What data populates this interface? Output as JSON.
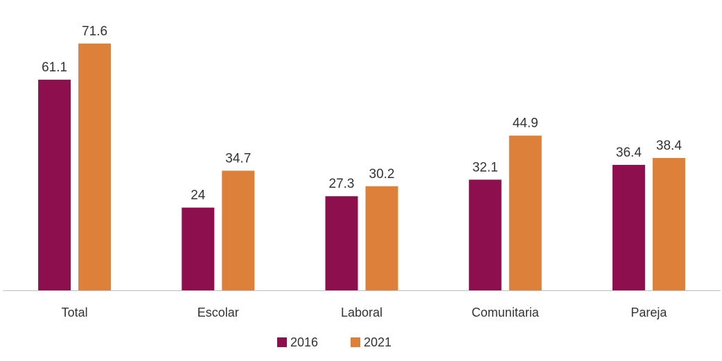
{
  "chart_data": {
    "type": "bar",
    "categories": [
      "Total",
      "Escolar",
      "Laboral",
      "Comunitaria",
      "Pareja"
    ],
    "series": [
      {
        "name": "2016",
        "color": "#8e0f4e",
        "values": [
          61.1,
          24,
          27.3,
          32.1,
          36.4
        ]
      },
      {
        "name": "2021",
        "color": "#dd813a",
        "values": [
          71.6,
          34.7,
          30.2,
          44.9,
          38.4
        ]
      }
    ],
    "title": "",
    "xlabel": "",
    "ylabel": "",
    "ylim": [
      0,
      80
    ],
    "grid": false,
    "legend_position": "bottom",
    "axis_color": "#bfbfbf"
  }
}
